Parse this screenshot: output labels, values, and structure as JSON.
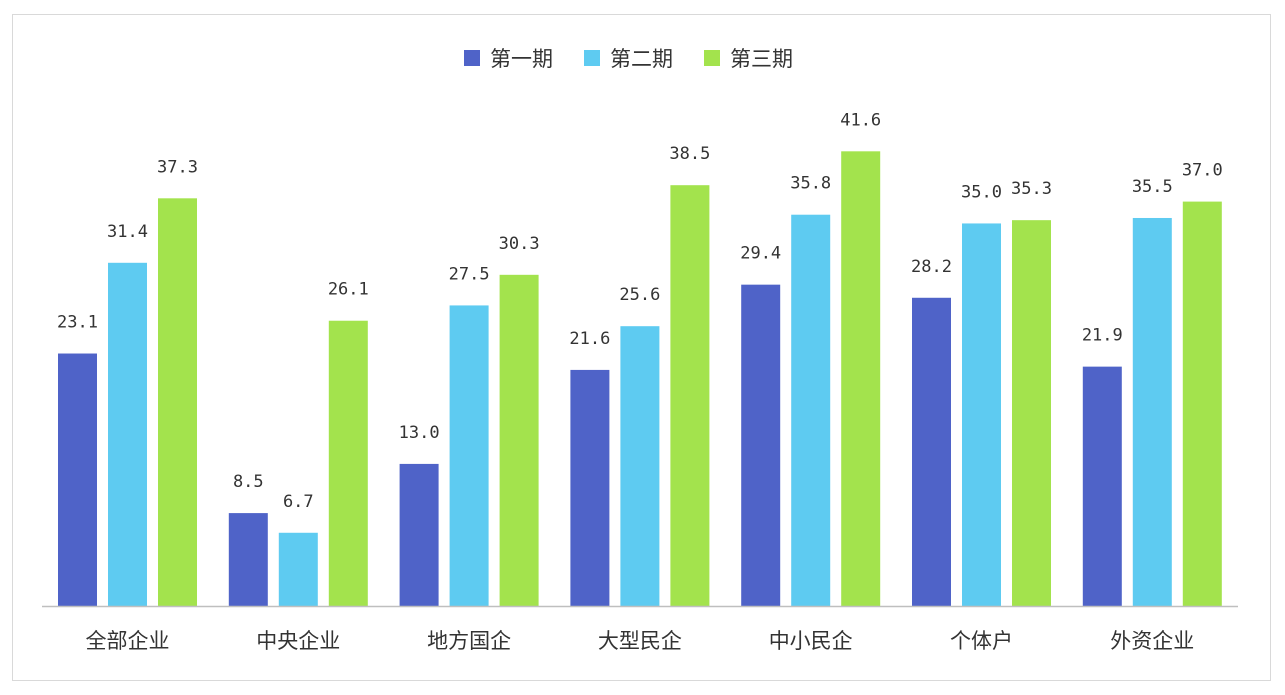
{
  "chart_data": {
    "type": "bar",
    "title": "",
    "xlabel": "",
    "ylabel": "",
    "ylim": [
      0,
      45
    ],
    "grid": false,
    "legend_position": "top-center",
    "categories": [
      "全部企业",
      "中央企业",
      "地方国企",
      "大型民企",
      "中小民企",
      "个体户",
      "外资企业"
    ],
    "series": [
      {
        "name": "第一期",
        "color": "#4f63c8",
        "values": [
          23.1,
          8.5,
          13.0,
          21.6,
          29.4,
          28.2,
          21.9
        ]
      },
      {
        "name": "第二期",
        "color": "#5ecbf1",
        "values": [
          31.4,
          6.7,
          27.5,
          25.6,
          35.8,
          35.0,
          35.5
        ]
      },
      {
        "name": "第三期",
        "color": "#a3e34d",
        "values": [
          37.3,
          26.1,
          30.3,
          38.5,
          41.6,
          35.3,
          37.0
        ]
      }
    ],
    "value_labels": [
      [
        "23.1",
        "8.5",
        "13.0",
        "21.6",
        "29.4",
        "28.2",
        "21.9"
      ],
      [
        "31.4",
        "6.7",
        "27.5",
        "25.6",
        "35.8",
        "35.0",
        "35.5"
      ],
      [
        "37.3",
        "26.1",
        "30.3",
        "38.5",
        "41.6",
        "35.3",
        "37.0"
      ]
    ]
  }
}
